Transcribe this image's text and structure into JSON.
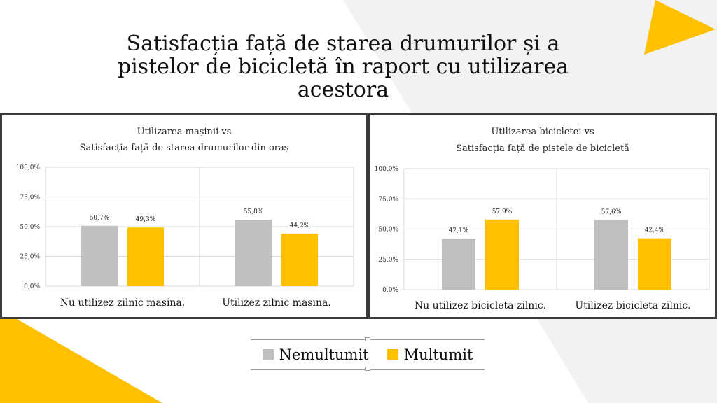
{
  "title": "Satisfacția față de starea drumurilor și a pistelor de bicicletă în raport cu utilizarea acestora",
  "colors": {
    "nemultumit": "#bfbfbf",
    "multumit": "#ffc000",
    "accent_yellow": "#ffc000",
    "background_gray": "#f2f2f2",
    "panel_border": "#3a3a3a"
  },
  "legend": {
    "items": [
      {
        "label": "Nemultumit",
        "color": "#bfbfbf"
      },
      {
        "label": "Multumit",
        "color": "#ffc000"
      }
    ]
  },
  "chart_data": [
    {
      "type": "bar",
      "title_line1": "Utilizarea mașinii vs",
      "title_line2": "Satisfacția față de starea drumurilor din oraș",
      "categories": [
        "Nu utilizez zilnic masina.",
        "Utilizez zilnic masina."
      ],
      "series": [
        {
          "name": "Nemultumit",
          "values": [
            50.7,
            55.8
          ],
          "labels": [
            "50,7%",
            "55,8%"
          ]
        },
        {
          "name": "Multumit",
          "values": [
            49.3,
            44.2
          ],
          "labels": [
            "49,3%",
            "44,2%"
          ]
        }
      ],
      "ylim": [
        0,
        100
      ],
      "yticks": [
        "0,0%",
        "25,0%",
        "50,0%",
        "75,0%",
        "100,0%"
      ],
      "grid": true
    },
    {
      "type": "bar",
      "title_line1": "Utilizarea bicicletei vs",
      "title_line2": "Satisfacția față de pistele de bicicletă",
      "categories": [
        "Nu utilizez bicicleta zilnic.",
        "Utilizez bicicleta zilnic."
      ],
      "series": [
        {
          "name": "Nemultumit",
          "values": [
            42.1,
            57.6
          ],
          "labels": [
            "42,1%",
            "57,6%"
          ]
        },
        {
          "name": "Multumit",
          "values": [
            57.9,
            42.4
          ],
          "labels": [
            "57,9%",
            "42,4%"
          ]
        }
      ],
      "ylim": [
        0,
        100
      ],
      "yticks": [
        "0,0%",
        "25,0%",
        "50,0%",
        "75,0%",
        "100,0%"
      ],
      "grid": true
    }
  ]
}
